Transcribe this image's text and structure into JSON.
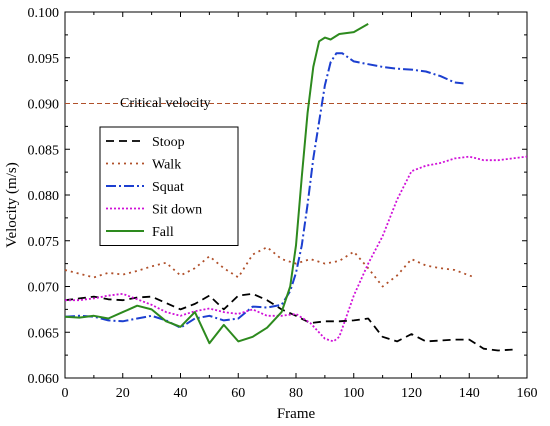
{
  "chart_data": {
    "type": "line",
    "title": "",
    "xlabel": "Frame",
    "ylabel": "Velocity (m/s)",
    "xlim": [
      0,
      160
    ],
    "ylim": [
      0.06,
      0.1
    ],
    "xticks": [
      0,
      20,
      40,
      60,
      80,
      100,
      120,
      140,
      160
    ],
    "yticks": [
      0.06,
      0.065,
      0.07,
      0.075,
      0.08,
      0.085,
      0.09,
      0.095,
      0.1
    ],
    "ytick_labels": [
      "0.060",
      "0.065",
      "0.070",
      "0.075",
      "0.080",
      "0.085",
      "0.090",
      "0.095",
      "0.100"
    ],
    "grid": false,
    "legend": "left",
    "reference_line": {
      "label": "Critical velocity",
      "y": 0.09,
      "color": "#b0502a"
    },
    "series": [
      {
        "name": "Stoop",
        "color": "#000000",
        "dash": "8,5",
        "width": 1.8,
        "x": [
          0,
          5,
          10,
          15,
          20,
          25,
          30,
          35,
          40,
          45,
          50,
          55,
          60,
          65,
          70,
          75,
          80,
          85,
          90,
          95,
          100,
          105,
          110,
          115,
          120,
          125,
          130,
          135,
          140,
          145,
          150,
          155
        ],
        "y": [
          0.0685,
          0.0687,
          0.0689,
          0.0686,
          0.0685,
          0.0688,
          0.0689,
          0.0682,
          0.0675,
          0.0681,
          0.069,
          0.0675,
          0.069,
          0.0692,
          0.0685,
          0.0675,
          0.0668,
          0.066,
          0.0662,
          0.0662,
          0.0663,
          0.0665,
          0.0645,
          0.064,
          0.0648,
          0.064,
          0.0641,
          0.0642,
          0.0642,
          0.0632,
          0.063,
          0.0631
        ]
      },
      {
        "name": "Walk",
        "color": "#b0502a",
        "dash": "2,4",
        "width": 1.8,
        "x": [
          0,
          5,
          10,
          15,
          20,
          25,
          30,
          35,
          40,
          45,
          50,
          55,
          60,
          65,
          70,
          75,
          80,
          85,
          90,
          95,
          100,
          105,
          110,
          115,
          120,
          125,
          130,
          135,
          140,
          142
        ],
        "y": [
          0.0718,
          0.0714,
          0.071,
          0.0715,
          0.0713,
          0.0717,
          0.0722,
          0.0726,
          0.0712,
          0.072,
          0.0733,
          0.072,
          0.071,
          0.0735,
          0.0743,
          0.073,
          0.0725,
          0.073,
          0.0725,
          0.0728,
          0.0738,
          0.072,
          0.07,
          0.0712,
          0.073,
          0.0723,
          0.072,
          0.0718,
          0.0712,
          0.071
        ]
      },
      {
        "name": "Squat",
        "color": "#1c3fd0",
        "dash": "10,3,2,3",
        "width": 2,
        "x": [
          0,
          5,
          10,
          15,
          20,
          25,
          30,
          35,
          40,
          45,
          50,
          55,
          60,
          65,
          70,
          75,
          78,
          80,
          82,
          84,
          86,
          88,
          90,
          92,
          94,
          96,
          100,
          105,
          110,
          115,
          120,
          125,
          130,
          135,
          138
        ],
        "y": [
          0.0667,
          0.0668,
          0.0667,
          0.0663,
          0.0662,
          0.0665,
          0.0668,
          0.0663,
          0.0655,
          0.0665,
          0.0668,
          0.0663,
          0.0665,
          0.0678,
          0.0677,
          0.068,
          0.0695,
          0.0715,
          0.0745,
          0.079,
          0.084,
          0.088,
          0.092,
          0.0945,
          0.0955,
          0.0955,
          0.0946,
          0.0943,
          0.094,
          0.0938,
          0.0937,
          0.0935,
          0.093,
          0.0923,
          0.0922
        ]
      },
      {
        "name": "Sit down",
        "color": "#d010d8",
        "dash": "2,2",
        "width": 1.8,
        "x": [
          0,
          5,
          10,
          15,
          20,
          25,
          30,
          35,
          40,
          45,
          50,
          55,
          60,
          65,
          70,
          75,
          80,
          85,
          90,
          93,
          95,
          100,
          105,
          110,
          115,
          120,
          125,
          130,
          135,
          140,
          145,
          150,
          155,
          160
        ],
        "y": [
          0.0685,
          0.0685,
          0.0687,
          0.069,
          0.0692,
          0.0686,
          0.068,
          0.0672,
          0.0668,
          0.0673,
          0.0676,
          0.0672,
          0.067,
          0.0675,
          0.0668,
          0.0668,
          0.067,
          0.066,
          0.0643,
          0.064,
          0.0645,
          0.069,
          0.0725,
          0.0755,
          0.0795,
          0.0826,
          0.0832,
          0.0835,
          0.084,
          0.0842,
          0.0838,
          0.0838,
          0.084,
          0.0842
        ]
      },
      {
        "name": "Fall",
        "color": "#2d8a1e",
        "dash": "",
        "width": 2,
        "x": [
          0,
          5,
          10,
          15,
          20,
          25,
          30,
          35,
          40,
          45,
          50,
          55,
          60,
          65,
          70,
          75,
          78,
          80,
          82,
          84,
          86,
          88,
          90,
          92,
          95,
          100,
          105
        ],
        "y": [
          0.0667,
          0.0666,
          0.0668,
          0.0665,
          0.0672,
          0.0679,
          0.0675,
          0.0662,
          0.0656,
          0.0672,
          0.0638,
          0.0658,
          0.064,
          0.0645,
          0.0655,
          0.0672,
          0.07,
          0.0745,
          0.082,
          0.089,
          0.094,
          0.0968,
          0.0972,
          0.097,
          0.0976,
          0.0978,
          0.0987
        ]
      }
    ]
  }
}
